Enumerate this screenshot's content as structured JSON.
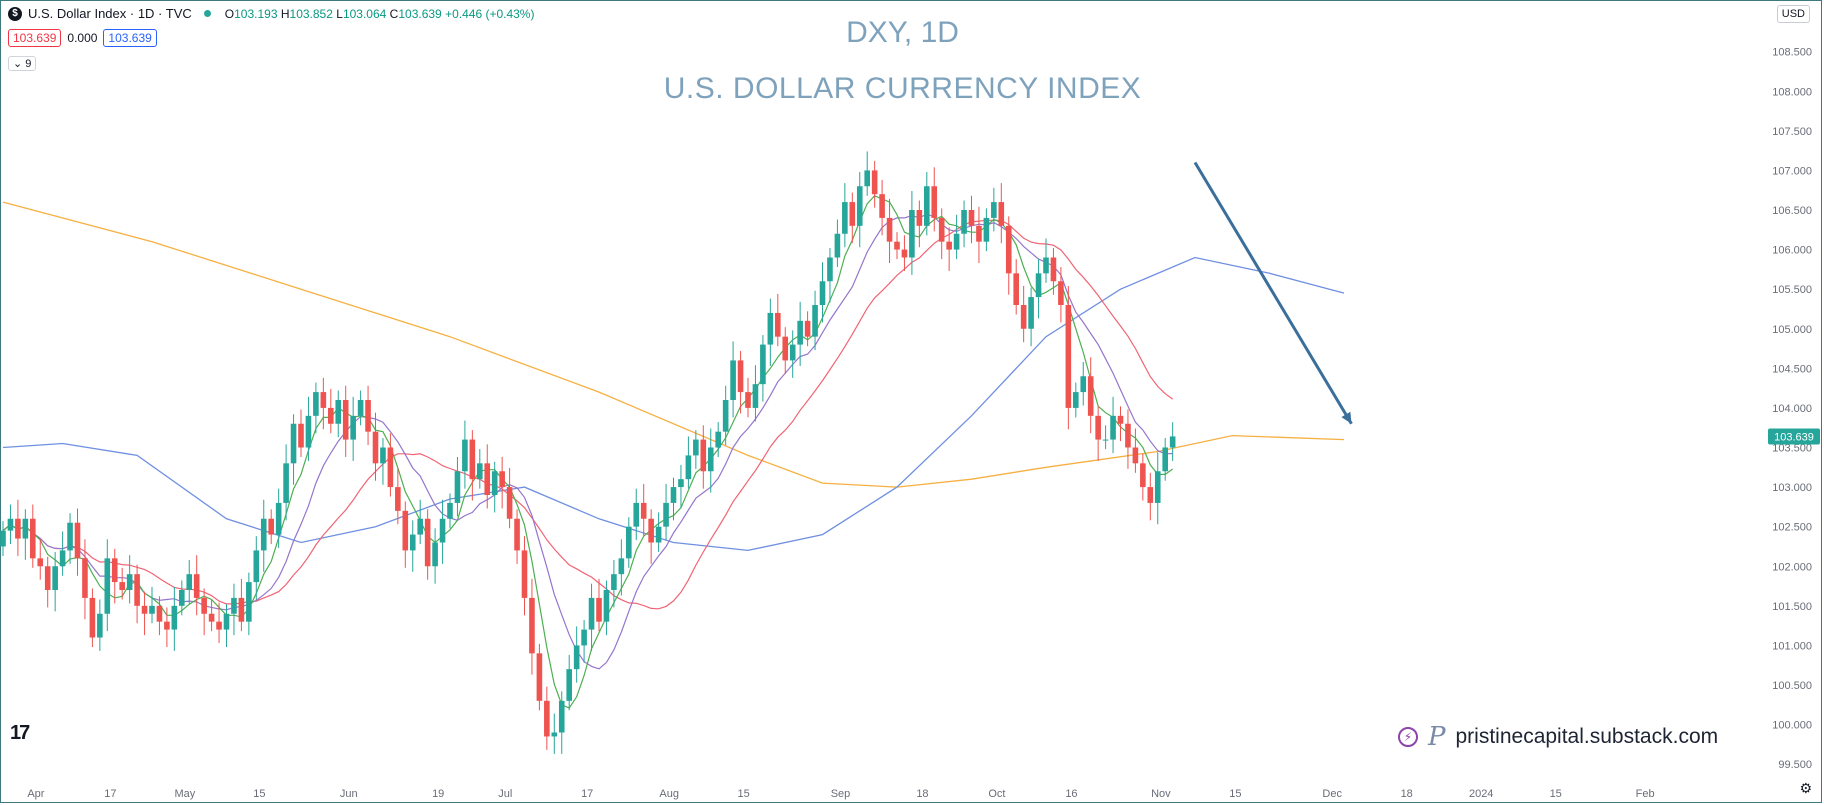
{
  "header": {
    "symbol_label": "U.S. Dollar Index · 1D · TVC",
    "ohlc": {
      "o_label": "O",
      "o": "103.193",
      "h_label": "H",
      "h": "103.852",
      "l_label": "L",
      "l": "103.064",
      "c_label": "C",
      "c": "103.639",
      "chg": "+0.446 (+0.43%)"
    },
    "bid": "103.639",
    "spread": "0.000",
    "ask": "103.639",
    "indicators_count": "9",
    "currency": "USD"
  },
  "chart_data": {
    "type": "candlestick",
    "title": "DXY, 1D",
    "subtitle": "U.S. DOLLAR CURRENCY INDEX",
    "ylim": [
      99.3,
      108.9
    ],
    "y_ticks": [
      "108.500",
      "108.000",
      "107.500",
      "107.000",
      "106.500",
      "106.000",
      "105.500",
      "105.000",
      "104.500",
      "104.000",
      "103.500",
      "103.000",
      "102.500",
      "102.000",
      "101.500",
      "101.000",
      "100.500",
      "100.000",
      "99.500"
    ],
    "last_price_label": "103.639",
    "x_ticks": [
      {
        "label": "Apr",
        "i": 2
      },
      {
        "label": "17",
        "i": 12
      },
      {
        "label": "May",
        "i": 22
      },
      {
        "label": "15",
        "i": 32
      },
      {
        "label": "Jun",
        "i": 44
      },
      {
        "label": "19",
        "i": 56
      },
      {
        "label": "Jul",
        "i": 65
      },
      {
        "label": "17",
        "i": 76
      },
      {
        "label": "Aug",
        "i": 87
      },
      {
        "label": "15",
        "i": 97
      },
      {
        "label": "Sep",
        "i": 110
      },
      {
        "label": "18",
        "i": 121
      },
      {
        "label": "Oct",
        "i": 131
      },
      {
        "label": "16",
        "i": 141
      },
      {
        "label": "Nov",
        "i": 153
      },
      {
        "label": "15",
        "i": 163
      },
      {
        "label": "Dec",
        "i": 176
      },
      {
        "label": "18",
        "i": 186
      },
      {
        "label": "2024",
        "i": 196
      },
      {
        "label": "15",
        "i": 206
      },
      {
        "label": "Feb",
        "i": 218
      }
    ],
    "closes": [
      102.45,
      102.6,
      102.35,
      102.6,
      102.1,
      102.0,
      101.7,
      102.0,
      102.2,
      102.55,
      102.1,
      101.6,
      101.1,
      101.4,
      102.1,
      101.8,
      101.7,
      101.9,
      101.5,
      101.4,
      101.5,
      101.3,
      101.2,
      101.5,
      101.7,
      101.9,
      101.6,
      101.4,
      101.3,
      101.2,
      101.4,
      101.6,
      101.3,
      101.8,
      102.2,
      102.6,
      102.4,
      102.8,
      103.3,
      103.8,
      103.5,
      103.9,
      104.2,
      104.0,
      103.8,
      104.1,
      103.6,
      103.9,
      104.1,
      103.7,
      103.3,
      103.5,
      103.0,
      102.7,
      102.2,
      102.4,
      102.6,
      102.0,
      102.3,
      102.6,
      102.8,
      103.2,
      103.6,
      103.1,
      103.3,
      102.9,
      103.2,
      103.0,
      102.6,
      102.2,
      101.6,
      100.9,
      100.3,
      99.85,
      99.9,
      100.3,
      100.7,
      101.0,
      101.2,
      101.6,
      101.3,
      101.7,
      101.9,
      102.1,
      102.5,
      102.8,
      102.6,
      102.3,
      102.5,
      102.8,
      103.0,
      103.1,
      103.4,
      103.6,
      103.2,
      103.5,
      103.7,
      104.1,
      104.6,
      104.2,
      104.0,
      104.3,
      104.8,
      105.2,
      104.9,
      104.6,
      104.8,
      105.1,
      104.9,
      105.3,
      105.6,
      105.9,
      106.2,
      106.6,
      106.3,
      106.8,
      107.0,
      106.7,
      106.4,
      106.1,
      106.0,
      105.9,
      106.5,
      106.3,
      106.8,
      106.4,
      106.1,
      106.0,
      106.2,
      106.5,
      106.3,
      106.1,
      106.4,
      106.6,
      106.3,
      105.7,
      105.3,
      105.0,
      105.4,
      105.7,
      105.9,
      105.6,
      105.3,
      104.0,
      104.2,
      104.4,
      103.9,
      103.6,
      103.6,
      103.9,
      103.8,
      103.5,
      103.3,
      103.0,
      102.8,
      103.2,
      103.5,
      103.64
    ],
    "candles_sample": [
      {
        "o": 103.19,
        "h": 103.85,
        "l": 103.06,
        "c": 103.64
      }
    ],
    "moving_averages": [
      {
        "color": "#4caf50",
        "period": 5
      },
      {
        "color": "#9575cd",
        "period": 10
      },
      {
        "color": "#f06474",
        "period": 20
      },
      {
        "color": "#6f8fe0",
        "period": 50
      },
      {
        "color": "#f6b042",
        "period": 200
      }
    ],
    "ma200_points": [
      [
        0,
        106.6
      ],
      [
        20,
        106.1
      ],
      [
        40,
        105.5
      ],
      [
        60,
        104.9
      ],
      [
        80,
        104.2
      ],
      [
        100,
        103.4
      ],
      [
        110,
        103.05
      ],
      [
        120,
        103.0
      ],
      [
        130,
        103.1
      ],
      [
        140,
        103.25
      ],
      [
        155,
        103.45
      ],
      [
        165,
        103.65
      ],
      [
        180,
        103.6
      ]
    ],
    "ma50_points": [
      [
        0,
        103.5
      ],
      [
        8,
        103.55
      ],
      [
        18,
        103.4
      ],
      [
        30,
        102.6
      ],
      [
        40,
        102.3
      ],
      [
        50,
        102.5
      ],
      [
        60,
        102.85
      ],
      [
        70,
        103.0
      ],
      [
        80,
        102.6
      ],
      [
        90,
        102.3
      ],
      [
        100,
        102.2
      ],
      [
        110,
        102.4
      ],
      [
        120,
        103.0
      ],
      [
        130,
        103.9
      ],
      [
        140,
        104.9
      ],
      [
        150,
        105.5
      ],
      [
        160,
        105.9
      ],
      [
        170,
        105.7
      ],
      [
        180,
        105.45
      ]
    ],
    "trend_arrow": {
      "from": [
        160,
        107.1
      ],
      "to": [
        181,
        103.8
      ],
      "color": "#3a6e9b"
    }
  },
  "branding": {
    "tv_logo": "17",
    "watermark": "pristinecapital.substack.com",
    "watermark_initial": "P"
  },
  "colors": {
    "up": "#26a69a",
    "down": "#ef5350",
    "axis_text": "#6a6d78",
    "title": "#7fa2bc"
  }
}
